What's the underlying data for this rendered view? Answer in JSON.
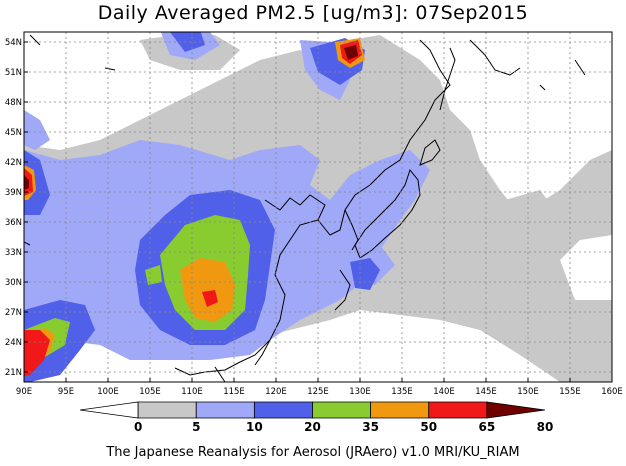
{
  "title": "Daily Averaged PM2.5 [ug/m3]: 07Sep2015",
  "footer": "The Japanese Reanalysis for Aerosol (JRAero) v1.0 MRI/KU_RIAM",
  "lon_range": [
    90,
    160
  ],
  "lat_range": [
    20,
    55
  ],
  "lon_ticks": [
    "90E",
    "95E",
    "100E",
    "105E",
    "110E",
    "115E",
    "120E",
    "125E",
    "130E",
    "135E",
    "140E",
    "145E",
    "150E",
    "155E",
    "160E"
  ],
  "lat_ticks": [
    "54N",
    "51N",
    "48N",
    "45N",
    "42N",
    "39N",
    "36N",
    "33N",
    "30N",
    "27N",
    "24N",
    "21N"
  ],
  "lat_tick_values": [
    54,
    51,
    48,
    45,
    42,
    39,
    36,
    33,
    30,
    27,
    24,
    21
  ],
  "colorbar": {
    "labels": [
      "0",
      "5",
      "10",
      "20",
      "35",
      "50",
      "65",
      "80"
    ],
    "colors": [
      "#ffffff",
      "#c8c8c8",
      "#a0a8f8",
      "#5060e8",
      "#88cc30",
      "#f09810",
      "#f01818",
      "#700000"
    ]
  },
  "colors": {
    "gray": "#c8c8c8",
    "lightblue": "#a0a8f8",
    "blue": "#5060e8",
    "green": "#88cc30",
    "orange": "#f09810",
    "red": "#f01818",
    "darkred": "#700000"
  }
}
